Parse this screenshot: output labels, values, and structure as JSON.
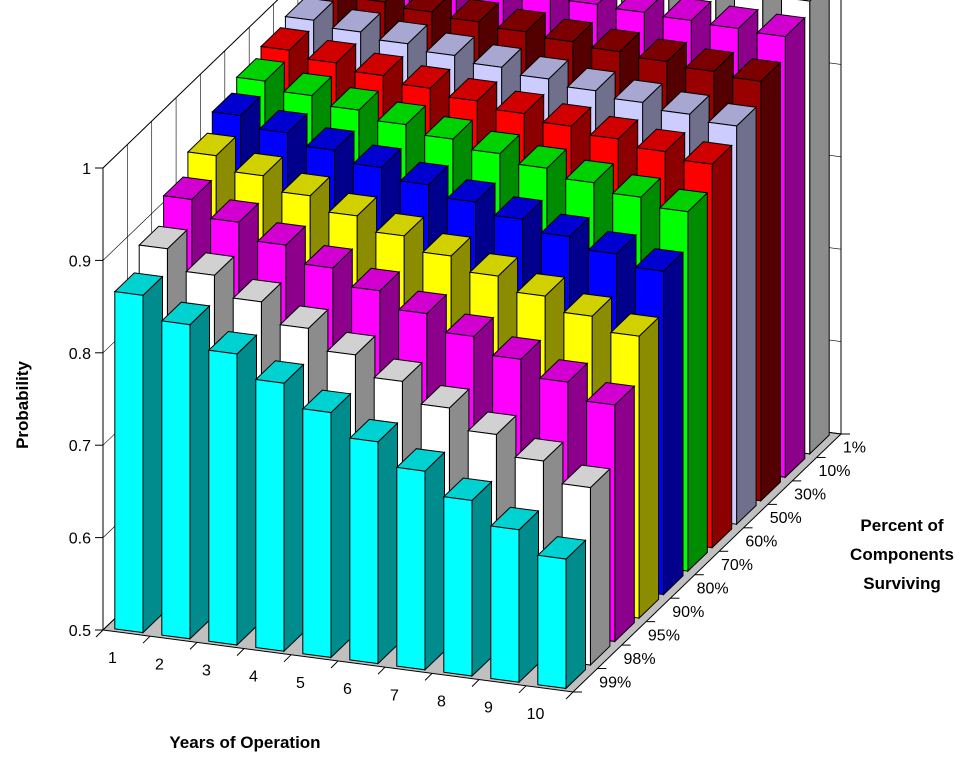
{
  "chart_data": {
    "type": "bar",
    "projection": "3d",
    "xlabel": "Years of Operation",
    "ylabel": "Probability",
    "zlabel_lines": [
      "Percent of",
      "Components",
      "Surviving"
    ],
    "x": [
      "1",
      "2",
      "3",
      "4",
      "5",
      "6",
      "7",
      "8",
      "9",
      "10"
    ],
    "y_ticks": [
      "0.5",
      "0.6",
      "0.7",
      "0.8",
      "0.9",
      "1"
    ],
    "ylim": [
      0.5,
      1.0
    ],
    "grid": true,
    "series": [
      {
        "name": "99%",
        "color": "#00ffff",
        "values": [
          0.865,
          0.84,
          0.815,
          0.79,
          0.765,
          0.74,
          0.715,
          0.69,
          0.665,
          0.64
        ]
      },
      {
        "name": "98%",
        "color": "#ffffff",
        "values": [
          0.89,
          0.868,
          0.846,
          0.824,
          0.802,
          0.78,
          0.758,
          0.736,
          0.714,
          0.692
        ]
      },
      {
        "name": "95%",
        "color": "#ff00ff",
        "values": [
          0.918,
          0.9,
          0.882,
          0.864,
          0.846,
          0.828,
          0.81,
          0.792,
          0.774,
          0.756
        ]
      },
      {
        "name": "90%",
        "color": "#ffff00",
        "values": [
          0.94,
          0.925,
          0.91,
          0.895,
          0.88,
          0.865,
          0.85,
          0.835,
          0.82,
          0.805
        ]
      },
      {
        "name": "80%",
        "color": "#0000ff",
        "values": [
          0.958,
          0.946,
          0.934,
          0.922,
          0.91,
          0.898,
          0.886,
          0.874,
          0.862,
          0.85
        ]
      },
      {
        "name": "70%",
        "color": "#00ff00",
        "values": [
          0.97,
          0.961,
          0.952,
          0.943,
          0.934,
          0.925,
          0.916,
          0.907,
          0.898,
          0.889
        ]
      },
      {
        "name": "60%",
        "color": "#ff0000",
        "values": [
          0.978,
          0.971,
          0.964,
          0.957,
          0.95,
          0.943,
          0.936,
          0.929,
          0.922,
          0.915
        ]
      },
      {
        "name": "50%",
        "color": "#ccccff",
        "values": [
          0.985,
          0.979,
          0.973,
          0.967,
          0.961,
          0.955,
          0.949,
          0.943,
          0.937,
          0.931
        ]
      },
      {
        "name": "30%",
        "color": "#990000",
        "values": [
          0.99,
          0.986,
          0.982,
          0.978,
          0.974,
          0.97,
          0.966,
          0.962,
          0.958,
          0.954
        ]
      },
      {
        "name": "10%",
        "color": "#ff00ff",
        "values": [
          0.995,
          0.993,
          0.991,
          0.989,
          0.987,
          0.985,
          0.983,
          0.981,
          0.979,
          0.977
        ]
      },
      {
        "name": "1%",
        "color": "#ffffff",
        "values": [
          0.999,
          0.998,
          0.997,
          0.996,
          0.995,
          0.994,
          0.993,
          0.992,
          0.991,
          0.99
        ]
      }
    ]
  }
}
